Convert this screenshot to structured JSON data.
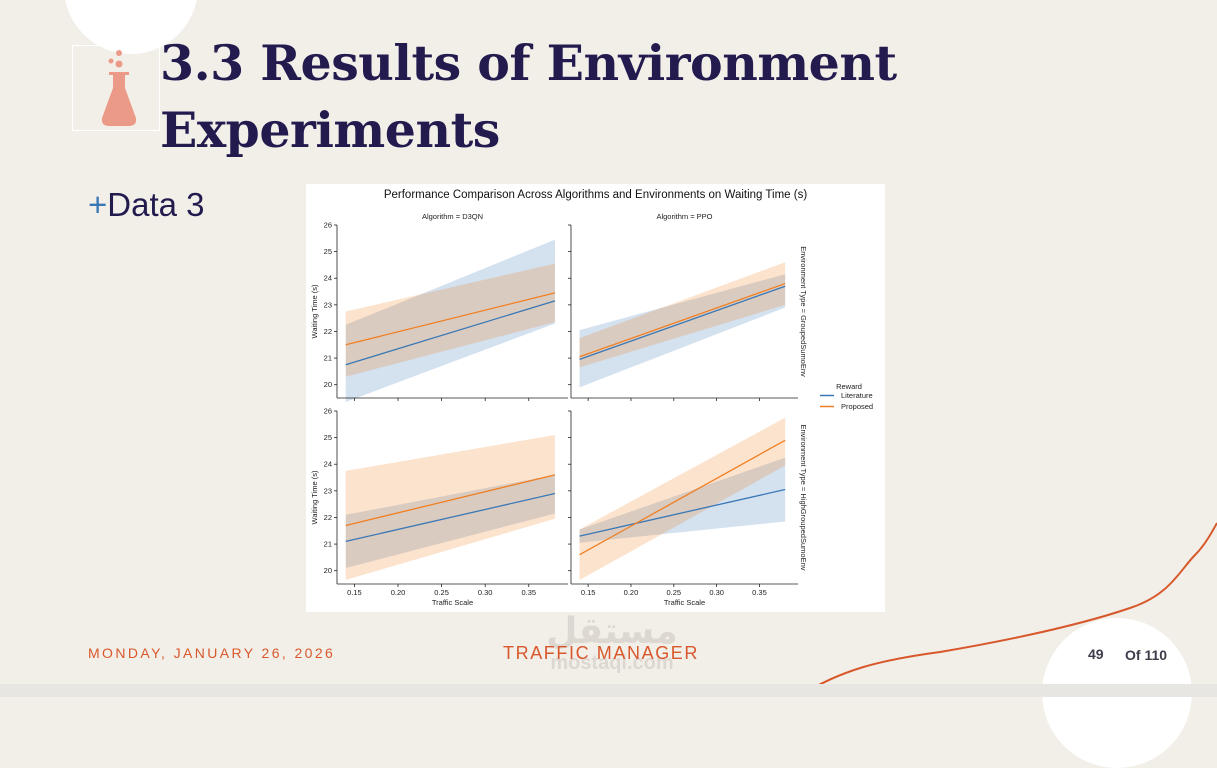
{
  "slide": {
    "title_line1": "3.3 Results of Environment",
    "title_line2": "Experiments",
    "bullet_marker": "+",
    "bullet_text": "Data 3"
  },
  "footer": {
    "date": "MONDAY, JANUARY 26, 2026",
    "title": "TRAFFIC MANAGER",
    "page_number": "49",
    "page_total": "Of 110"
  },
  "watermark": {
    "arabic": "مستقل",
    "latin": "mostaql.com"
  },
  "colors": {
    "title": "#231a4e",
    "accent_orange": "#d8582b",
    "plus_blue": "#3a78b5",
    "series_literature": "#3a78b5",
    "series_proposed": "#f07f22",
    "icon_flask": "#eb9a87"
  },
  "icons": {
    "slide_icon": "flask-icon"
  },
  "chart_data": {
    "type": "line",
    "title": "Performance Comparison Across Algorithms and Environments on Waiting Time (s)",
    "xlabel": "Traffic Scale",
    "ylabel": "Waiting Time (s)",
    "x_ticks": [
      "0.15",
      "0.20",
      "0.25",
      "0.30",
      "0.35"
    ],
    "y_ticks": [
      "20",
      "21",
      "22",
      "23",
      "24",
      "25",
      "26"
    ],
    "xlim": [
      0.13,
      0.395
    ],
    "ylim": [
      19.5,
      26
    ],
    "legend": {
      "title": "Reward",
      "position": "right",
      "entries": [
        {
          "name": "Literature",
          "color": "#3a78b5"
        },
        {
          "name": "Proposed",
          "color": "#f07f22"
        }
      ]
    },
    "panels": [
      {
        "col_title": "Algorithm = D3QN",
        "row_title": "",
        "series": [
          {
            "name": "Literature",
            "x": [
              0.14,
              0.38
            ],
            "y": [
              20.75,
              23.15
            ],
            "ci_lower": [
              19.35,
              22.3
            ],
            "ci_upper": [
              22.25,
              25.45
            ]
          },
          {
            "name": "Proposed",
            "x": [
              0.14,
              0.38
            ],
            "y": [
              21.5,
              23.45
            ],
            "ci_lower": [
              20.3,
              22.35
            ],
            "ci_upper": [
              22.75,
              24.55
            ]
          }
        ]
      },
      {
        "col_title": "Algorithm = PPO",
        "row_title": "Environment Type = GroupedSumoEnv",
        "series": [
          {
            "name": "Literature",
            "x": [
              0.14,
              0.38
            ],
            "y": [
              20.95,
              23.7
            ],
            "ci_lower": [
              19.9,
              22.9
            ],
            "ci_upper": [
              22.05,
              24.15
            ]
          },
          {
            "name": "Proposed",
            "x": [
              0.14,
              0.38
            ],
            "y": [
              21.05,
              23.8
            ],
            "ci_lower": [
              20.65,
              23.0
            ],
            "ci_upper": [
              21.75,
              24.6
            ]
          }
        ]
      },
      {
        "col_title": "",
        "row_title": "",
        "series": [
          {
            "name": "Literature",
            "x": [
              0.14,
              0.38
            ],
            "y": [
              21.1,
              22.9
            ],
            "ci_lower": [
              20.1,
              22.15
            ],
            "ci_upper": [
              22.1,
              23.6
            ]
          },
          {
            "name": "Proposed",
            "x": [
              0.14,
              0.38
            ],
            "y": [
              21.7,
              23.6
            ],
            "ci_lower": [
              19.65,
              21.95
            ],
            "ci_upper": [
              23.75,
              25.1
            ]
          }
        ]
      },
      {
        "col_title": "",
        "row_title": "Environment Type = HighGroupedSumoEnv",
        "series": [
          {
            "name": "Literature",
            "x": [
              0.14,
              0.38
            ],
            "y": [
              21.3,
              23.05
            ],
            "ci_lower": [
              21.05,
              21.85
            ],
            "ci_upper": [
              21.55,
              24.25
            ]
          },
          {
            "name": "Proposed",
            "x": [
              0.14,
              0.38
            ],
            "y": [
              20.6,
              24.9
            ],
            "ci_lower": [
              19.65,
              23.95
            ],
            "ci_upper": [
              21.55,
              25.75
            ]
          }
        ]
      }
    ]
  }
}
